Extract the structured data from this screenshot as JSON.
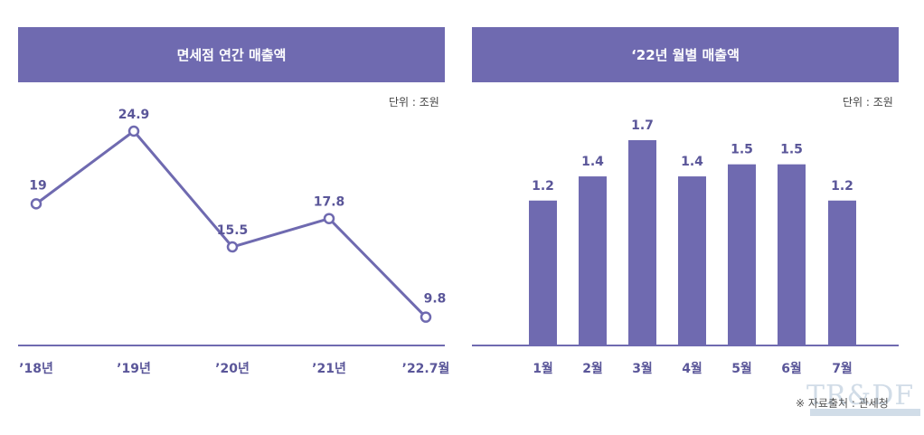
{
  "panels": {
    "left": {
      "title": "면세점 연간 매출액",
      "unit": "단위 : 조원"
    },
    "right": {
      "title": "‘22년 월별 매출액",
      "unit": "단위 : 조원"
    }
  },
  "source": "※ 자료출처 : 관세청",
  "watermark": {
    "text": "TR&DF"
  },
  "colors": {
    "accent": "#6f6ab0",
    "axis": "#6f6ab0",
    "label": "#5a5699"
  },
  "chart_data": [
    {
      "type": "line",
      "title": "면세점 연간 매출액",
      "unit": "단위 : 조원",
      "categories": [
        "’18년",
        "’19년",
        "’20년",
        "’21년",
        "’22.7월"
      ],
      "values": [
        19,
        24.9,
        15.5,
        17.8,
        9.8
      ],
      "value_labels": [
        "19",
        "24.9",
        "15.5",
        "17.8",
        "9.8"
      ]
    },
    {
      "type": "bar",
      "title": "‘22년 월별 매출액",
      "unit": "단위 : 조원",
      "categories": [
        "1월",
        "2월",
        "3월",
        "4월",
        "5월",
        "6월",
        "7월"
      ],
      "values": [
        1.2,
        1.4,
        1.7,
        1.4,
        1.5,
        1.5,
        1.2
      ],
      "value_labels": [
        "1.2",
        "1.4",
        "1.7",
        "1.4",
        "1.5",
        "1.5",
        "1.2"
      ]
    }
  ]
}
